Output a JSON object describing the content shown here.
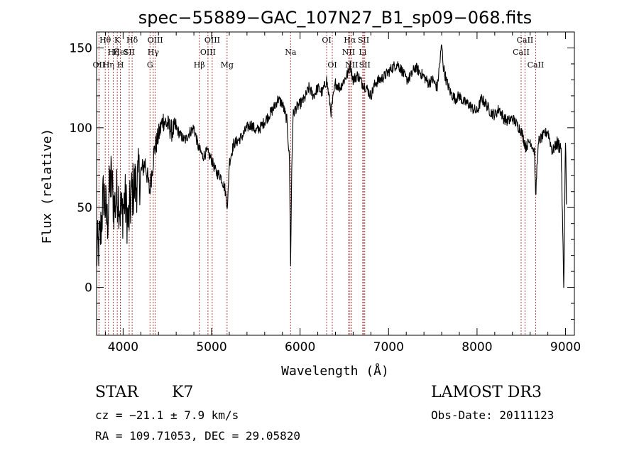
{
  "chart_data": {
    "type": "line",
    "title": "spec−55889−GAC_107N27_B1_sp09−068.fits",
    "xlabel": "Wavelength (Å)",
    "ylabel": "Flux (relative)",
    "xlim": [
      3700,
      9100
    ],
    "ylim": [
      -30,
      160
    ],
    "xticks": [
      4000,
      5000,
      6000,
      7000,
      8000,
      9000
    ],
    "yticks": [
      0,
      50,
      100,
      150
    ],
    "x_minor_step": 200,
    "y_minor_step": 10,
    "series": [
      {
        "name": "flux",
        "x": [
          3700,
          3740,
          3780,
          3820,
          3860,
          3900,
          3940,
          3980,
          4020,
          4060,
          4100,
          4150,
          4200,
          4250,
          4300,
          4350,
          4400,
          4450,
          4500,
          4550,
          4600,
          4650,
          4700,
          4750,
          4800,
          4850,
          4900,
          4950,
          5000,
          5050,
          5100,
          5150,
          5180,
          5200,
          5250,
          5300,
          5350,
          5400,
          5450,
          5500,
          5550,
          5600,
          5650,
          5700,
          5750,
          5800,
          5850,
          5880,
          5893,
          5906,
          5920,
          5950,
          6000,
          6050,
          6100,
          6150,
          6200,
          6250,
          6300,
          6350,
          6400,
          6450,
          6500,
          6550,
          6563,
          6600,
          6650,
          6700,
          6750,
          6800,
          6850,
          6900,
          6950,
          7000,
          7050,
          7100,
          7150,
          7200,
          7250,
          7300,
          7350,
          7400,
          7450,
          7500,
          7550,
          7600,
          7620,
          7650,
          7700,
          7750,
          7800,
          7850,
          7900,
          7950,
          8000,
          8050,
          8100,
          8150,
          8200,
          8250,
          8300,
          8350,
          8400,
          8450,
          8500,
          8550,
          8600,
          8650,
          8662,
          8680,
          8700,
          8750,
          8800,
          8850,
          8900,
          8950,
          8980,
          9000,
          9010
        ],
        "y": [
          20,
          30,
          60,
          40,
          70,
          50,
          60,
          45,
          55,
          40,
          60,
          65,
          72,
          78,
          60,
          85,
          95,
          105,
          102,
          98,
          100,
          95,
          92,
          97,
          100,
          88,
          82,
          85,
          80,
          72,
          70,
          62,
          50,
          78,
          90,
          92,
          95,
          100,
          102,
          98,
          100,
          104,
          108,
          112,
          118,
          115,
          105,
          80,
          15,
          75,
          108,
          112,
          115,
          118,
          125,
          120,
          125,
          122,
          130,
          110,
          128,
          125,
          130,
          135,
          140,
          130,
          133,
          128,
          125,
          120,
          128,
          130,
          132,
          135,
          138,
          140,
          136,
          130,
          132,
          138,
          135,
          132,
          128,
          130,
          125,
          152,
          138,
          130,
          122,
          118,
          120,
          116,
          115,
          112,
          110,
          118,
          115,
          110,
          108,
          112,
          106,
          104,
          106,
          102,
          98,
          88,
          92,
          85,
          55,
          80,
          92,
          95,
          98,
          85,
          90,
          88,
          0,
          95,
          52
        ]
      }
    ],
    "lines": [
      {
        "label": "OII",
        "wave": 3727,
        "row": 2
      },
      {
        "label": "Hθ",
        "wave": 3798,
        "row": 0
      },
      {
        "label": "Hη",
        "wave": 3835,
        "row": 2
      },
      {
        "label": "Hζ",
        "wave": 3889,
        "row": 1
      },
      {
        "label": "K",
        "wave": 3934,
        "row": 0
      },
      {
        "label": "HeI",
        "wave": 3969,
        "row": 1
      },
      {
        "label": "H",
        "wave": 3970,
        "row": 2
      },
      {
        "label": "SII",
        "wave": 4069,
        "row": 1
      },
      {
        "label": "Hδ",
        "wave": 4102,
        "row": 0
      },
      {
        "label": "G",
        "wave": 4304,
        "row": 2
      },
      {
        "label": "Hγ",
        "wave": 4341,
        "row": 1
      },
      {
        "label": "OIII",
        "wave": 4363,
        "row": 0
      },
      {
        "label": "Hβ",
        "wave": 4861,
        "row": 2
      },
      {
        "label": "OIII",
        "wave": 4959,
        "row": 1
      },
      {
        "label": "OIII",
        "wave": 5007,
        "row": 0
      },
      {
        "label": "Mg",
        "wave": 5175,
        "row": 2
      },
      {
        "label": "Na",
        "wave": 5893,
        "row": 1
      },
      {
        "label": "OI",
        "wave": 6300,
        "row": 0
      },
      {
        "label": "OI",
        "wave": 6364,
        "row": 2
      },
      {
        "label": "NII",
        "wave": 6548,
        "row": 1
      },
      {
        "label": "Hα",
        "wave": 6563,
        "row": 0
      },
      {
        "label": "NII",
        "wave": 6583,
        "row": 2
      },
      {
        "label": "Li",
        "wave": 6708,
        "row": 1
      },
      {
        "label": "SII",
        "wave": 6717,
        "row": 0
      },
      {
        "label": "SII",
        "wave": 6731,
        "row": 2
      },
      {
        "label": "CaII",
        "wave": 8498,
        "row": 1
      },
      {
        "label": "CaII",
        "wave": 8542,
        "row": 0
      },
      {
        "label": "CaII",
        "wave": 8662,
        "row": 2
      }
    ]
  },
  "info": {
    "object_class": "STAR",
    "subclass": "K7",
    "survey": "LAMOST DR3",
    "redshift_line": "cz = −21.1 ± 7.9 km/s",
    "obs_date": "Obs-Date: 20111123",
    "coords": "RA = 109.71053, DEC =  29.05820"
  }
}
